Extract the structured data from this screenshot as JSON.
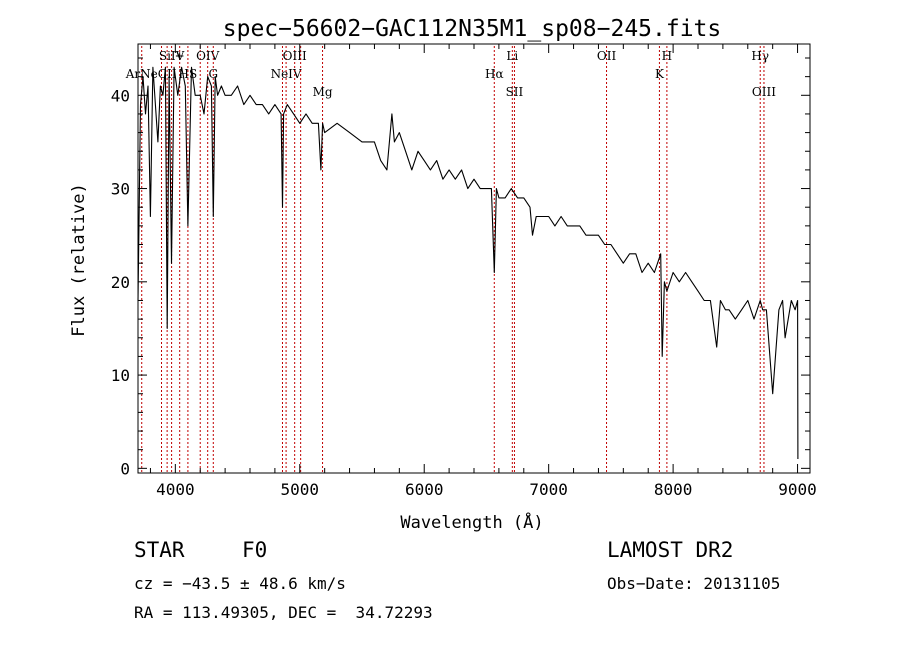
{
  "info": {
    "object_class": "STAR",
    "subclass": "F0",
    "survey": "LAMOST DR2",
    "cz": "cz = −43.5 ± 48.6 km/s",
    "obs_date": "Obs−Date: 20131105",
    "coords": "RA = 113.49305, DEC =  34.72293"
  },
  "chart_data": {
    "type": "line",
    "title": "spec−56602−GAC112N35M1_sp08−245.fits",
    "xlabel": "Wavelength (Å)",
    "ylabel": "Flux (relative)",
    "xlim": [
      3700,
      9100
    ],
    "ylim": [
      -0.5,
      45.5
    ],
    "xticks": [
      4000,
      5000,
      6000,
      7000,
      8000,
      9000
    ],
    "yticks": [
      0,
      10,
      20,
      30,
      40
    ],
    "grid": false,
    "series": [
      {
        "x": [
          3700,
          3720,
          3740,
          3760,
          3780,
          3800,
          3820,
          3840,
          3860,
          3880,
          3900,
          3920,
          3935,
          3950,
          3969,
          3990,
          4020,
          4050,
          4080,
          4101,
          4130,
          4160,
          4200,
          4230,
          4260,
          4290,
          4305,
          4320,
          4340,
          4370,
          4400,
          4450,
          4500,
          4550,
          4600,
          4650,
          4700,
          4750,
          4800,
          4850,
          4861,
          4870,
          4900,
          4950,
          5000,
          5050,
          5100,
          5150,
          5170,
          5183,
          5200,
          5300,
          5400,
          5500,
          5600,
          5650,
          5700,
          5740,
          5760,
          5800,
          5850,
          5900,
          5950,
          6000,
          6050,
          6100,
          6150,
          6200,
          6250,
          6300,
          6350,
          6400,
          6450,
          6500,
          6540,
          6563,
          6580,
          6600,
          6650,
          6700,
          6750,
          6800,
          6850,
          6870,
          6900,
          6950,
          7000,
          7050,
          7100,
          7150,
          7200,
          7250,
          7300,
          7350,
          7400,
          7450,
          7500,
          7550,
          7600,
          7650,
          7700,
          7750,
          7800,
          7850,
          7900,
          7912,
          7930,
          7950,
          8000,
          8050,
          8100,
          8150,
          8200,
          8250,
          8300,
          8350,
          8380,
          8420,
          8450,
          8500,
          8550,
          8600,
          8650,
          8700,
          8720,
          8750,
          8800,
          8850,
          8880,
          8900,
          8950,
          8980,
          9000,
          9003
        ],
        "y": [
          18,
          39,
          42,
          38,
          41,
          27,
          43,
          39,
          35,
          41,
          40,
          43,
          15,
          42,
          22,
          43,
          40,
          43,
          41,
          26,
          43,
          40,
          40,
          38,
          42,
          41,
          27,
          42,
          40,
          41,
          40,
          40,
          41,
          39,
          40,
          39,
          39,
          38,
          39,
          38,
          28,
          38,
          39,
          38,
          37,
          38,
          37,
          37,
          32,
          37,
          36,
          37,
          36,
          35,
          35,
          33,
          32,
          38,
          35,
          36,
          34,
          32,
          34,
          33,
          32,
          33,
          31,
          32,
          31,
          32,
          30,
          31,
          30,
          30,
          30,
          21,
          30,
          29,
          29,
          30,
          29,
          29,
          28,
          25,
          27,
          27,
          27,
          26,
          27,
          26,
          26,
          26,
          25,
          25,
          25,
          24,
          24,
          23,
          22,
          23,
          23,
          21,
          22,
          21,
          23,
          12,
          20,
          19,
          21,
          20,
          21,
          20,
          19,
          18,
          18,
          13,
          18,
          17,
          17,
          16,
          17,
          18,
          16,
          18,
          17,
          17,
          8,
          17,
          18,
          14,
          18,
          17,
          18,
          1
        ]
      }
    ],
    "lines": [
      {
        "x": 3730,
        "label": "ArNe",
        "row": "mid"
      },
      {
        "x": 3889,
        "label": "",
        "row": "none"
      },
      {
        "x": 3934,
        "label": "CII",
        "row": "mid"
      },
      {
        "x": 3970,
        "label": "SiIV",
        "row": "top"
      },
      {
        "x": 4035,
        "label": "+",
        "row": "top"
      },
      {
        "x": 4101,
        "label": "HS",
        "row": "mid"
      },
      {
        "x": 4200,
        "label": "",
        "row": "none"
      },
      {
        "x": 4260,
        "label": "OIV",
        "row": "top"
      },
      {
        "x": 4305,
        "label": "G",
        "row": "mid"
      },
      {
        "x": 4861,
        "label": "",
        "row": "none"
      },
      {
        "x": 4890,
        "label": "NeIV",
        "row": "mid"
      },
      {
        "x": 4959,
        "label": "OIII",
        "row": "top"
      },
      {
        "x": 5007,
        "label": "",
        "row": "none"
      },
      {
        "x": 5183,
        "label": "Mg",
        "row": "low"
      },
      {
        "x": 6563,
        "label": "Hα",
        "row": "mid"
      },
      {
        "x": 6708,
        "label": "Li",
        "row": "top"
      },
      {
        "x": 6725,
        "label": "SII",
        "row": "low"
      },
      {
        "x": 7465,
        "label": "OII",
        "row": "top"
      },
      {
        "x": 7890,
        "label": "K",
        "row": "mid"
      },
      {
        "x": 7950,
        "label": "H",
        "row": "top"
      },
      {
        "x": 8700,
        "label": "Hγ",
        "row": "top"
      },
      {
        "x": 8730,
        "label": "OIII",
        "row": "low"
      }
    ]
  }
}
